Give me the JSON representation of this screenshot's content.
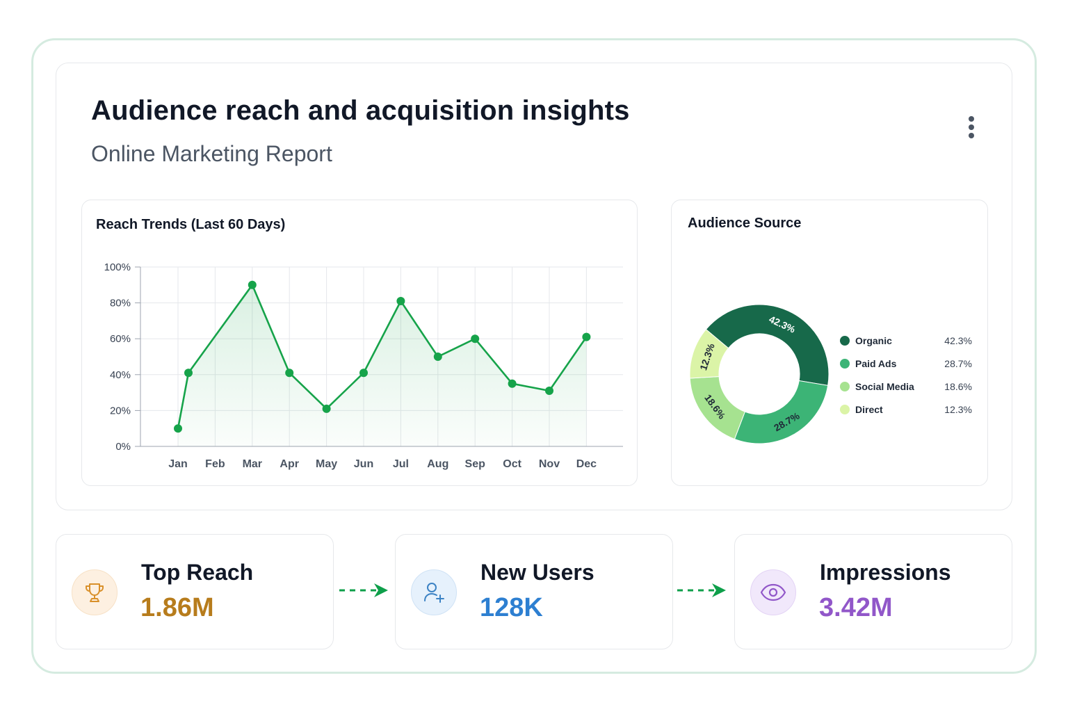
{
  "header": {
    "title": "Audience reach and acquisition insights",
    "subtitle": "Online Marketing Report",
    "menu_icon": "more-vertical-icon"
  },
  "reach_trends": {
    "title": "Reach Trends (Last 60 Days)"
  },
  "audience_source": {
    "title": "Audience Source"
  },
  "chart_data": [
    {
      "type": "line",
      "title": "Reach Trends (Last 60 Days)",
      "xlabel": "",
      "ylabel": "",
      "x_ticks": [
        "Jan",
        "Feb",
        "Mar",
        "Apr",
        "May",
        "Jun",
        "Jul",
        "Aug",
        "Sep",
        "Oct",
        "Nov",
        "Dec"
      ],
      "y_ticks": [
        "0%",
        "20%",
        "40%",
        "60%",
        "80%",
        "100%"
      ],
      "ylim": [
        0,
        100
      ],
      "grid": true,
      "area_fill": true,
      "points": [
        {
          "x": "Jan",
          "y": 10
        },
        {
          "x": "Jan–Feb",
          "y": 41
        },
        {
          "x": "Mar",
          "y": 90
        },
        {
          "x": "Apr",
          "y": 41
        },
        {
          "x": "May",
          "y": 21
        },
        {
          "x": "Jun",
          "y": 41
        },
        {
          "x": "Jul",
          "y": 81
        },
        {
          "x": "Aug",
          "y": 50
        },
        {
          "x": "Sep",
          "y": 60
        },
        {
          "x": "Oct",
          "y": 35
        },
        {
          "x": "Nov",
          "y": 31
        },
        {
          "x": "Dec",
          "y": 61
        }
      ],
      "line_color": "#16a34a"
    },
    {
      "type": "pie",
      "variant": "donut",
      "title": "Audience Source",
      "legend_position": "right",
      "slices": [
        {
          "label": "Organic",
          "value": 42.3,
          "display": "42.3%",
          "color": "#17694a"
        },
        {
          "label": "Paid Ads",
          "value": 28.7,
          "display": "28.7%",
          "color": "#3cb476"
        },
        {
          "label": "Social Media",
          "value": 18.6,
          "display": "18.6%",
          "color": "#a6e290"
        },
        {
          "label": "Direct",
          "value": 12.3,
          "display": "12.3%",
          "color": "#dbf4a7"
        }
      ]
    }
  ],
  "stats": [
    {
      "label": "Top Reach",
      "value": "1.86M",
      "icon": "trophy-icon",
      "value_color": "#b77c1c",
      "icon_bg": "#fdf0e1",
      "icon_color": "#d9902a"
    },
    {
      "label": "New Users",
      "value": "128K",
      "icon": "user-plus-icon",
      "value_color": "#2d7fd1",
      "icon_bg": "#e6f1fc",
      "icon_color": "#3b82c4"
    },
    {
      "label": "Impressions",
      "value": "3.42M",
      "icon": "eye-icon",
      "value_color": "#9157c9",
      "icon_bg": "#f1e8fb",
      "icon_color": "#9157c9"
    }
  ],
  "connector_icon": "dashed-arrow-right-icon",
  "connector_color": "#0e9f4a"
}
